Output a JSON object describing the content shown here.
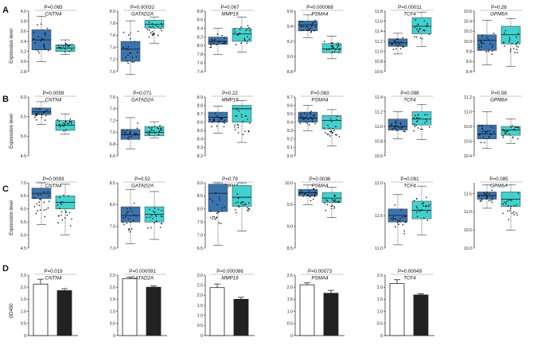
{
  "colors": {
    "group1": "#3a74b0",
    "group2": "#3fd2cf",
    "bar1": "#ffffff",
    "bar2": "#222222",
    "axis": "#222222"
  },
  "rows": [
    {
      "label": "A",
      "ylabel": "Expression level"
    },
    {
      "label": "B",
      "ylabel": "Expression level"
    },
    {
      "label": "C",
      "ylabel": "Expression level"
    },
    {
      "label": "D",
      "ylabel": "OD450"
    }
  ],
  "chart_data": [
    {
      "type": "box",
      "row": 0,
      "gene": "CNTN4",
      "p_label": "P=0.065",
      "ylim": [
        2.8,
        4.0
      ],
      "yticks": [
        "2.8",
        "3.0",
        "3.2",
        "3.4",
        "3.6",
        "3.8",
        "4.0"
      ],
      "boxes": [
        {
          "whislo": 3.0,
          "q1": 3.23,
          "med": 3.43,
          "q3": 3.63,
          "whishi": 3.9
        },
        {
          "whislo": 3.14,
          "q1": 3.2,
          "med": 3.27,
          "q3": 3.33,
          "whishi": 3.43
        }
      ]
    },
    {
      "type": "box",
      "row": 0,
      "gene": "GATAD2A",
      "p_label": "P=0.00032",
      "ylim": [
        7.0,
        8.0
      ],
      "yticks": [
        "7.0",
        "7.2",
        "7.4",
        "7.6",
        "7.8",
        "8.0"
      ],
      "boxes": [
        {
          "whislo": 6.95,
          "q1": 7.17,
          "med": 7.37,
          "q3": 7.5,
          "whishi": 7.84
        },
        {
          "whislo": 7.47,
          "q1": 7.72,
          "med": 7.78,
          "q3": 7.85,
          "whishi": 7.9
        }
      ]
    },
    {
      "type": "box",
      "row": 0,
      "gene": "MMP16",
      "p_label": "P=0.067",
      "ylim": [
        7.4,
        8.8
      ],
      "yticks": [
        "7.4",
        "7.6",
        "7.8",
        "8.0",
        "8.2",
        "8.4",
        "8.6",
        "8.8"
      ],
      "boxes": [
        {
          "whislo": 7.8,
          "q1": 8.03,
          "med": 8.1,
          "q3": 8.2,
          "whishi": 8.4
        },
        {
          "whislo": 7.85,
          "q1": 8.1,
          "med": 8.27,
          "q3": 8.4,
          "whishi": 8.66
        }
      ]
    },
    {
      "type": "box",
      "row": 0,
      "gene": "PSMA4",
      "p_label": "P=0.000068",
      "ylim": [
        8.8,
        9.6
      ],
      "yticks": [
        "8.8",
        "9.0",
        "9.2",
        "9.4",
        "9.6"
      ],
      "boxes": [
        {
          "whislo": 9.25,
          "q1": 9.34,
          "med": 9.42,
          "q3": 9.47,
          "whishi": 9.55
        },
        {
          "whislo": 8.97,
          "q1": 9.05,
          "med": 9.1,
          "q3": 9.17,
          "whishi": 9.27
        }
      ]
    },
    {
      "type": "box",
      "row": 0,
      "gene": "TCF4",
      "p_label": "P=0.00011",
      "ylim": [
        10.6,
        11.8
      ],
      "yticks": [
        "10.6",
        "10.8",
        "11.0",
        "11.2",
        "11.4",
        "11.6",
        "11.8"
      ],
      "boxes": [
        {
          "whislo": 10.95,
          "q1": 11.1,
          "med": 11.17,
          "q3": 11.25,
          "whishi": 11.36
        },
        {
          "whislo": 11.1,
          "q1": 11.35,
          "med": 11.5,
          "q3": 11.67,
          "whishi": 11.78
        }
      ]
    },
    {
      "type": "box",
      "row": 0,
      "gene": "GPM6A",
      "p_label": "P=0.26",
      "ylim": [
        9.4,
        10.6
      ],
      "yticks": [
        "9.4",
        "9.6",
        "9.8",
        "10.0",
        "10.2",
        "10.4",
        "10.6"
      ],
      "boxes": [
        {
          "whislo": 9.53,
          "q1": 9.82,
          "med": 10.02,
          "q3": 10.13,
          "whishi": 10.42
        },
        {
          "whislo": 9.5,
          "q1": 9.95,
          "med": 10.13,
          "q3": 10.3,
          "whishi": 10.45
        }
      ]
    },
    {
      "type": "box",
      "row": 1,
      "gene": "CNTN4",
      "p_label": "P=0.0059",
      "ylim": [
        4.5,
        6.0
      ],
      "yticks": [
        "4.5",
        "5.0",
        "5.5",
        "6.0"
      ],
      "boxes": [
        {
          "whislo": 5.3,
          "q1": 5.55,
          "med": 5.62,
          "q3": 5.72,
          "whishi": 5.88
        },
        {
          "whislo": 5.05,
          "q1": 5.15,
          "med": 5.28,
          "q3": 5.4,
          "whishi": 5.57
        }
      ]
    },
    {
      "type": "box",
      "row": 1,
      "gene": "GATAD2A",
      "p_label": "P=0.071",
      "ylim": [
        6.6,
        7.6
      ],
      "yticks": [
        "6.6",
        "6.8",
        "7.0",
        "7.2",
        "7.4",
        "7.6"
      ],
      "boxes": [
        {
          "whislo": 6.72,
          "q1": 6.88,
          "med": 6.96,
          "q3": 7.05,
          "whishi": 7.25
        },
        {
          "whislo": 6.9,
          "q1": 6.94,
          "med": 7.0,
          "q3": 7.1,
          "whishi": 7.18
        }
      ]
    },
    {
      "type": "box",
      "row": 1,
      "gene": "MMP16",
      "p_label": "P=0.22",
      "ylim": [
        8.2,
        8.9
      ],
      "yticks": [
        "8.2",
        "8.3",
        "8.4",
        "8.5",
        "8.6",
        "8.7",
        "8.8",
        "8.9"
      ],
      "boxes": [
        {
          "whislo": 8.47,
          "q1": 8.6,
          "med": 8.66,
          "q3": 8.72,
          "whishi": 8.79
        },
        {
          "whislo": 8.36,
          "q1": 8.6,
          "med": 8.76,
          "q3": 8.8,
          "whishi": 8.86
        }
      ]
    },
    {
      "type": "box",
      "row": 1,
      "gene": "PSMA4",
      "p_label": "P=0.083",
      "ylim": [
        9.0,
        9.7
      ],
      "yticks": [
        "9.0",
        "9.1",
        "9.2",
        "9.3",
        "9.4",
        "9.5",
        "9.6",
        "9.7"
      ],
      "boxes": [
        {
          "whislo": 9.3,
          "q1": 9.4,
          "med": 9.45,
          "q3": 9.52,
          "whishi": 9.6
        },
        {
          "whislo": 9.12,
          "q1": 9.32,
          "med": 9.42,
          "q3": 9.48,
          "whishi": 9.55
        }
      ]
    },
    {
      "type": "box",
      "row": 1,
      "gene": "TCF4",
      "p_label": "P=0.098",
      "ylim": [
        10.6,
        11.4
      ],
      "yticks": [
        "10.6",
        "10.8",
        "11.0",
        "11.2",
        "11.4"
      ],
      "boxes": [
        {
          "whislo": 10.83,
          "q1": 10.95,
          "med": 11.0,
          "q3": 11.1,
          "whishi": 11.2
        },
        {
          "whislo": 10.82,
          "q1": 11.02,
          "med": 11.1,
          "q3": 11.2,
          "whishi": 11.3
        }
      ]
    },
    {
      "type": "box",
      "row": 1,
      "gene": "GPM6A",
      "p_label": "P=0.58",
      "ylim": [
        10.4,
        11.2
      ],
      "yticks": [
        "10.4",
        "10.6",
        "10.8",
        "11.0",
        "11.2"
      ],
      "boxes": [
        {
          "whislo": 10.5,
          "q1": 10.63,
          "med": 10.7,
          "q3": 10.82,
          "whishi": 11.0
        },
        {
          "whislo": 10.57,
          "q1": 10.68,
          "med": 10.75,
          "q3": 10.8,
          "whishi": 10.9
        }
      ]
    },
    {
      "type": "box",
      "row": 2,
      "gene": "CNTN4",
      "p_label": "P=0.0093",
      "ylim": [
        4.5,
        7.0
      ],
      "yticks": [
        "4.5",
        "5.0",
        "5.5",
        "6.0",
        "6.5",
        "7.0"
      ],
      "boxes": [
        {
          "whislo": 5.4,
          "q1": 6.4,
          "med": 6.6,
          "q3": 6.8,
          "whishi": 7.0
        },
        {
          "whislo": 5.0,
          "q1": 6.0,
          "med": 6.25,
          "q3": 6.5,
          "whishi": 6.95
        }
      ]
    },
    {
      "type": "box",
      "row": 2,
      "gene": "GATAD2A",
      "p_label": "P=0.52",
      "ylim": [
        7.0,
        8.5
      ],
      "yticks": [
        "7.0",
        "7.5",
        "8.0",
        "8.5"
      ],
      "boxes": [
        {
          "whislo": 7.1,
          "q1": 7.6,
          "med": 7.75,
          "q3": 7.95,
          "whishi": 8.35
        },
        {
          "whislo": 7.2,
          "q1": 7.6,
          "med": 7.78,
          "q3": 7.95,
          "whishi": 8.3
        }
      ]
    },
    {
      "type": "box",
      "row": 2,
      "gene": "MMP16",
      "p_label": "P=0.79",
      "ylim": [
        6.5,
        9.0
      ],
      "yticks": [
        "6.5",
        "7.0",
        "7.5",
        "8.0",
        "8.5",
        "9.0"
      ],
      "boxes": [
        {
          "whislo": 6.6,
          "q1": 7.9,
          "med": 8.6,
          "q3": 8.95,
          "whishi": 9.0
        },
        {
          "whislo": 7.15,
          "q1": 8.1,
          "med": 8.45,
          "q3": 8.9,
          "whishi": 9.0
        }
      ]
    },
    {
      "type": "box",
      "row": 2,
      "gene": "PSMA4",
      "p_label": "P=0.0036",
      "ylim": [
        8.5,
        10.0
      ],
      "yticks": [
        "8.5",
        "9.0",
        "9.5",
        "10.0"
      ],
      "boxes": [
        {
          "whislo": 9.5,
          "q1": 9.7,
          "med": 9.77,
          "q3": 9.85,
          "whishi": 9.95
        },
        {
          "whislo": 9.2,
          "q1": 9.55,
          "med": 9.65,
          "q3": 9.78,
          "whishi": 9.9
        }
      ]
    },
    {
      "type": "box",
      "row": 2,
      "gene": "TCF4",
      "p_label": "P=0.091",
      "ylim": [
        11.0,
        12.0
      ],
      "yticks": [
        "11.0",
        "11.5",
        "12.0"
      ],
      "boxes": [
        {
          "whislo": 11.05,
          "q1": 11.4,
          "med": 11.5,
          "q3": 11.6,
          "whishi": 11.82
        },
        {
          "whislo": 11.2,
          "q1": 11.45,
          "med": 11.58,
          "q3": 11.72,
          "whishi": 11.95
        }
      ]
    },
    {
      "type": "box",
      "row": 2,
      "gene": "GPM6A",
      "p_label": "P=0.085",
      "ylim": [
        10.0,
        11.8
      ],
      "yticks": [
        "10.0",
        "10.5",
        "11.0",
        "11.5"
      ],
      "boxes": [
        {
          "whislo": 11.1,
          "q1": 11.35,
          "med": 11.45,
          "q3": 11.55,
          "whishi": 11.75
        },
        {
          "whislo": 10.5,
          "q1": 11.15,
          "med": 11.35,
          "q3": 11.55,
          "whishi": 11.75
        }
      ]
    },
    {
      "type": "bar",
      "row": 3,
      "gene": "CNTN4",
      "p_label": "P=0.019",
      "ylim": [
        0,
        2.5
      ],
      "yticks": [
        "0",
        "0.5",
        "1.0",
        "1.5",
        "2.0",
        "2.5"
      ],
      "values": [
        2.13,
        1.86
      ],
      "errors": [
        0.2,
        0.08
      ]
    },
    {
      "type": "bar",
      "row": 3,
      "gene": "GATAD2A",
      "p_label": "P=0.000091",
      "ylim": [
        0,
        2.5
      ],
      "yticks": [
        "0",
        "0.5",
        "1.0",
        "1.5",
        "2.0",
        "2.5"
      ],
      "values": [
        2.35,
        2.0
      ],
      "errors": [
        0.07,
        0.05
      ]
    },
    {
      "type": "bar",
      "row": 3,
      "gene": "MMP16",
      "p_label": "P=0.000086",
      "ylim": [
        0,
        3.0
      ],
      "yticks": [
        "0",
        "0.5",
        "1.0",
        "1.5",
        "2.0",
        "2.5",
        "3.0"
      ],
      "values": [
        2.38,
        1.8
      ],
      "errors": [
        0.18,
        0.1
      ]
    },
    {
      "type": "bar",
      "row": 3,
      "gene": "PSMA4",
      "p_label": "P=0.00073",
      "ylim": [
        0,
        2.5
      ],
      "yticks": [
        "0",
        "0.5",
        "1.0",
        "1.5",
        "2.0",
        "2.5"
      ],
      "values": [
        2.1,
        1.75
      ],
      "errors": [
        0.08,
        0.12
      ]
    },
    {
      "type": "bar",
      "row": 3,
      "gene": "TCF4",
      "p_label": "P=0.00049",
      "ylim": [
        0,
        2.5
      ],
      "yticks": [
        "0",
        "0.5",
        "1.0",
        "1.5",
        "2.0",
        "2.5"
      ],
      "values": [
        2.15,
        1.68
      ],
      "errors": [
        0.16,
        0.05
      ]
    }
  ]
}
